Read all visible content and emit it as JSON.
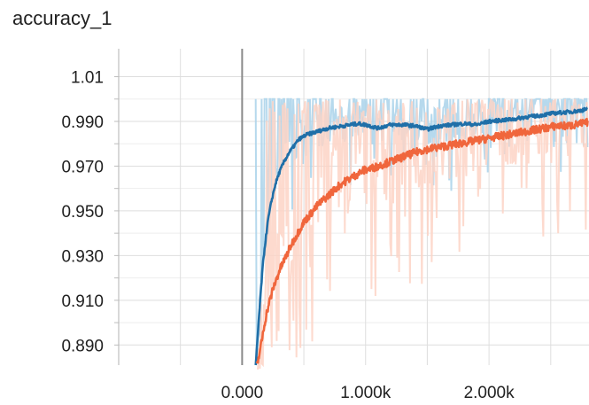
{
  "chart_data": {
    "type": "line",
    "title": "accuracy_1",
    "xlabel": "",
    "ylabel": "",
    "x_ticks": [
      {
        "value": 0,
        "label": "0.000"
      },
      {
        "value": 1000,
        "label": "1.000k"
      },
      {
        "value": 2000,
        "label": "2.000k"
      }
    ],
    "y_ticks": [
      {
        "value": 1.01,
        "label": "1.01"
      },
      {
        "value": 0.99,
        "label": "0.990"
      },
      {
        "value": 0.97,
        "label": "0.970"
      },
      {
        "value": 0.95,
        "label": "0.950"
      },
      {
        "value": 0.93,
        "label": "0.930"
      },
      {
        "value": 0.91,
        "label": "0.910"
      },
      {
        "value": 0.89,
        "label": "0.890"
      }
    ],
    "xlim": [
      -1000,
      2810
    ],
    "ylim": [
      0.881,
      1.0225
    ],
    "grid": true,
    "series": [
      {
        "color": "#1f6fa8",
        "raw_color": "#a9d2ea",
        "x": [
          110,
          130,
          150,
          170,
          190,
          210,
          240,
          270,
          300,
          340,
          380,
          420,
          460,
          520,
          580,
          640,
          700,
          760,
          820,
          880,
          940,
          1000,
          1100,
          1200,
          1300,
          1400,
          1500,
          1600,
          1700,
          1800,
          1900,
          2000,
          2100,
          2200,
          2300,
          2400,
          2500,
          2600,
          2700,
          2800
        ],
        "values": [
          0.8805,
          0.897,
          0.913,
          0.927,
          0.937,
          0.946,
          0.955,
          0.962,
          0.967,
          0.972,
          0.976,
          0.979,
          0.982,
          0.984,
          0.985,
          0.986,
          0.987,
          0.9875,
          0.988,
          0.9885,
          0.989,
          0.9885,
          0.987,
          0.9885,
          0.9885,
          0.988,
          0.9865,
          0.988,
          0.9885,
          0.989,
          0.9885,
          0.99,
          0.9905,
          0.991,
          0.992,
          0.9925,
          0.9935,
          0.994,
          0.9945,
          0.9955
        ]
      },
      {
        "color": "#f0663c",
        "raw_color": "#fdd3c6",
        "x": [
          120,
          150,
          180,
          210,
          250,
          300,
          350,
          400,
          450,
          500,
          560,
          620,
          680,
          740,
          800,
          860,
          920,
          980,
          1050,
          1150,
          1250,
          1350,
          1450,
          1550,
          1650,
          1750,
          1850,
          1950,
          2050,
          2150,
          2250,
          2350,
          2450,
          2550,
          2650,
          2750,
          2800
        ],
        "values": [
          0.8805,
          0.889,
          0.899,
          0.907,
          0.915,
          0.923,
          0.929,
          0.935,
          0.94,
          0.945,
          0.949,
          0.953,
          0.956,
          0.959,
          0.962,
          0.964,
          0.966,
          0.968,
          0.969,
          0.971,
          0.973,
          0.975,
          0.977,
          0.978,
          0.979,
          0.98,
          0.981,
          0.982,
          0.983,
          0.984,
          0.985,
          0.986,
          0.987,
          0.988,
          0.988,
          0.989,
          0.9895
        ]
      }
    ]
  }
}
